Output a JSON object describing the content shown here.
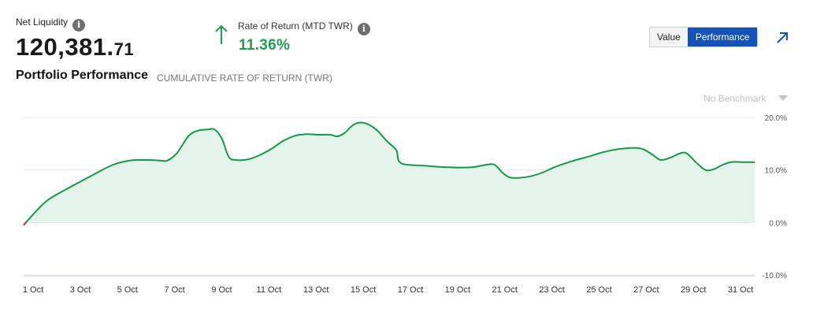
{
  "summary": {
    "net_liquidity_label": "Net Liquidity",
    "net_liquidity_whole": "120,381.",
    "net_liquidity_cents": "71",
    "ror_label": "Rate of Return (MTD TWR)",
    "ror_value": "11.36%",
    "info_glyph": "i",
    "up_color": "#1e9e4a"
  },
  "toolbar": {
    "value_label": "Value",
    "performance_label": "Performance",
    "active": "Performance",
    "accent": "#1352b8"
  },
  "section": {
    "title": "Portfolio Performance",
    "subtitle": "CUMULATIVE RATE OF RETURN (TWR)",
    "benchmark": "No Benchmark"
  },
  "chart_data": {
    "type": "area",
    "ylim": [
      -10,
      20
    ],
    "yticks": [
      20,
      10,
      0,
      -10
    ],
    "ytick_labels": [
      "20.0%",
      "10.0%",
      "0.0%",
      "-10.0%"
    ],
    "xlim": [
      1,
      32
    ],
    "xticks": [
      1,
      3,
      5,
      7,
      9,
      11,
      13,
      15,
      17,
      19,
      21,
      23,
      25,
      27,
      29,
      31
    ],
    "xtick_labels": [
      "1 Oct",
      "3 Oct",
      "5 Oct",
      "7 Oct",
      "9 Oct",
      "11 Oct",
      "13 Oct",
      "15 Oct",
      "17 Oct",
      "19 Oct",
      "21 Oct",
      "23 Oct",
      "25 Oct",
      "27 Oct",
      "29 Oct",
      "31 Oct"
    ],
    "grid": true,
    "line_color": "#129a48",
    "fill_color": "#e6f5ec",
    "negative_color": "#e03030",
    "series": [
      {
        "x": [
          1,
          1.6,
          2.1,
          3,
          4,
          4.8,
          5.5,
          6.2,
          6.8,
          7.1,
          7.5,
          8,
          8.4,
          8.8,
          9.1,
          9.4,
          9.7,
          10,
          10.5,
          11,
          11.5,
          12,
          12.5,
          13,
          13.5,
          14,
          14.3,
          14.6,
          14.9,
          15.2,
          15.6,
          16,
          16.4,
          16.8,
          17,
          18,
          19,
          20,
          20.5,
          20.9,
          21.1,
          21.3,
          21.6,
          22,
          22.5,
          23,
          23.5,
          24,
          24.5,
          25,
          25.5,
          26,
          26.5,
          27,
          27.3,
          27.7,
          28,
          28.4,
          28.8,
          29.1,
          29.5,
          29.8,
          30,
          30.3,
          30.6,
          31,
          31.5,
          32
        ],
        "y": [
          -0.5,
          2.5,
          4.5,
          6.8,
          9.2,
          11.0,
          11.8,
          11.9,
          11.8,
          11.8,
          13.2,
          16.5,
          17.5,
          17.7,
          17.7,
          16.0,
          12.5,
          11.9,
          12.0,
          12.8,
          14.0,
          15.5,
          16.5,
          16.8,
          16.7,
          16.7,
          16.4,
          17.0,
          18.3,
          19.0,
          18.7,
          17.5,
          15.5,
          13.8,
          11.3,
          10.8,
          10.5,
          10.5,
          10.9,
          11.1,
          10.5,
          9.5,
          8.6,
          8.5,
          8.8,
          9.5,
          10.5,
          11.3,
          12.0,
          12.6,
          13.3,
          13.8,
          14.1,
          14.2,
          13.9,
          12.8,
          11.9,
          12.3,
          13.1,
          13.2,
          11.5,
          10.3,
          9.9,
          10.2,
          10.9,
          11.5,
          11.5,
          11.5
        ]
      }
    ]
  }
}
